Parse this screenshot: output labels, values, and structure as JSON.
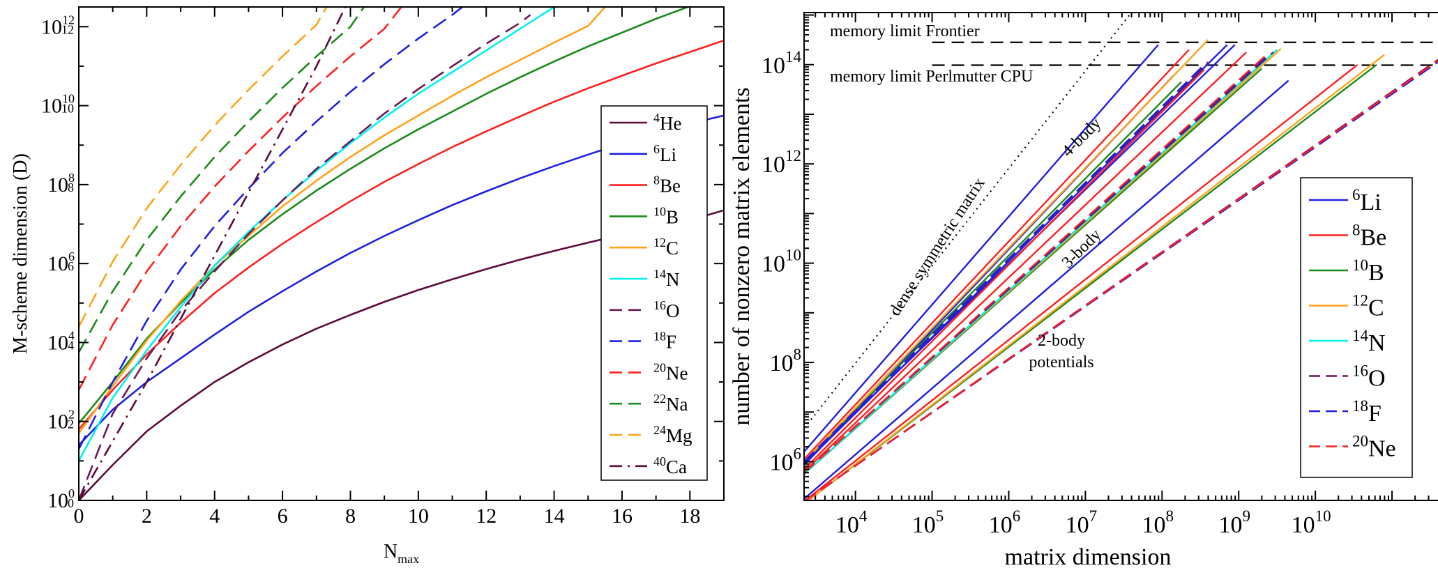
{
  "chart_data": [
    {
      "type": "line",
      "xlabel": "N",
      "xlabel_sub": "max",
      "ylabel": "M-scheme dimension (D)",
      "yscale": "log",
      "xlim": [
        0,
        19
      ],
      "ylim_log10": [
        0,
        12.5
      ],
      "x_ticks": [
        0,
        2,
        4,
        6,
        8,
        10,
        12,
        14,
        16,
        18
      ],
      "y_ticks_log10": [
        0,
        2,
        4,
        6,
        8,
        10,
        12
      ],
      "legend_position": "right",
      "series": [
        {
          "name_sup": "4",
          "name": "He",
          "color": "#5c0a3c",
          "dash": "solid",
          "x": [
            0,
            1,
            2,
            3,
            4,
            5,
            6,
            7,
            8,
            9,
            10,
            11,
            12,
            13,
            14,
            15,
            16,
            17,
            18,
            19
          ],
          "y_log10": [
            0,
            0.9,
            1.75,
            2.4,
            3.0,
            3.5,
            3.95,
            4.35,
            4.7,
            5.03,
            5.33,
            5.6,
            5.86,
            6.1,
            6.32,
            6.53,
            6.73,
            6.92,
            7.1,
            7.35
          ]
        },
        {
          "name_sup": "6",
          "name": "Li",
          "color": "#1f1fe0",
          "dash": "solid",
          "x": [
            0,
            1,
            2,
            3,
            4,
            5,
            6,
            7,
            8,
            9,
            10,
            11,
            12,
            13,
            14,
            15,
            16,
            17,
            18,
            19
          ],
          "y_log10": [
            1.4,
            2.3,
            3.0,
            3.6,
            4.2,
            4.78,
            5.3,
            5.8,
            6.27,
            6.7,
            7.1,
            7.48,
            7.83,
            8.16,
            8.47,
            8.76,
            9.04,
            9.31,
            9.55,
            9.75
          ]
        },
        {
          "name_sup": "8",
          "name": "Be",
          "color": "#ff1f1f",
          "dash": "solid",
          "x": [
            0,
            1,
            2,
            3,
            4,
            5,
            6,
            7,
            8,
            9,
            10,
            11,
            12,
            13,
            14,
            15,
            16,
            17,
            18,
            19
          ],
          "y_log10": [
            1.8,
            2.8,
            3.7,
            4.5,
            5.25,
            5.9,
            6.5,
            7.05,
            7.58,
            8.07,
            8.52,
            8.95,
            9.35,
            9.73,
            10.1,
            10.44,
            10.76,
            11.07,
            11.36,
            11.65
          ]
        },
        {
          "name_sup": "10",
          "name": "B",
          "color": "#1a8a1a",
          "dash": "solid",
          "x": [
            0,
            1,
            2,
            3,
            4,
            5,
            6,
            7,
            8,
            9,
            10,
            11,
            12,
            13,
            14,
            15,
            16,
            17,
            18
          ],
          "y_log10": [
            1.95,
            3.0,
            4.1,
            5.0,
            5.85,
            6.6,
            7.25,
            7.85,
            8.4,
            8.92,
            9.4,
            9.85,
            10.3,
            10.72,
            11.12,
            11.5,
            11.85,
            12.2,
            12.52
          ]
        },
        {
          "name_sup": "12",
          "name": "C",
          "color": "#ffa31a",
          "dash": "solid",
          "x": [
            0,
            1,
            2,
            3,
            4,
            5,
            6,
            7,
            8,
            9,
            10,
            11,
            12,
            13,
            14,
            15,
            15.5
          ],
          "y_log10": [
            1.7,
            2.9,
            4.05,
            5.05,
            5.95,
            6.7,
            7.45,
            8.1,
            8.7,
            9.25,
            9.75,
            10.25,
            10.72,
            11.16,
            11.6,
            12.02,
            12.5
          ]
        },
        {
          "name_sup": "14",
          "name": "N",
          "color": "#00f0f0",
          "dash": "solid",
          "x": [
            0,
            1,
            2,
            3,
            4,
            5,
            6,
            7,
            8,
            9,
            10,
            11,
            12,
            13,
            14
          ],
          "y_log10": [
            1.0,
            2.6,
            3.8,
            4.9,
            5.95,
            6.8,
            7.6,
            8.35,
            9.05,
            9.7,
            10.3,
            10.85,
            11.4,
            11.95,
            12.5
          ]
        },
        {
          "name_sup": "16",
          "name": "O",
          "color": "#6a1a58",
          "dash": "dashed",
          "x": [
            0,
            1,
            2,
            3,
            4,
            5,
            6,
            7,
            8,
            9,
            10,
            11,
            12,
            13,
            13.3
          ],
          "y_log10": [
            0,
            2.2,
            3.6,
            4.8,
            5.8,
            6.75,
            7.6,
            8.4,
            9.1,
            9.8,
            10.42,
            11.0,
            11.57,
            12.1,
            12.3
          ]
        },
        {
          "name_sup": "18",
          "name": "F",
          "color": "#1f1fe0",
          "dash": "dashed",
          "x": [
            0,
            1,
            2,
            3,
            4,
            5,
            6,
            7,
            8,
            9,
            10,
            11,
            11.3
          ],
          "y_log10": [
            1.3,
            3.0,
            4.55,
            5.85,
            6.95,
            7.9,
            8.8,
            9.6,
            10.35,
            11.05,
            11.7,
            12.3,
            12.5
          ]
        },
        {
          "name_sup": "20",
          "name": "Ne",
          "color": "#ff1f1f",
          "dash": "dashed",
          "x": [
            0,
            1,
            2,
            3,
            4,
            5,
            6,
            7,
            8,
            9,
            9.5
          ],
          "y_log10": [
            2.8,
            4.45,
            5.8,
            6.95,
            7.95,
            8.85,
            9.7,
            10.5,
            11.25,
            11.95,
            12.5
          ]
        },
        {
          "name_sup": "22",
          "name": "Na",
          "color": "#1a8a1a",
          "dash": "dashed",
          "x": [
            0,
            1,
            2,
            3,
            4,
            5,
            6,
            7,
            8,
            8.4
          ],
          "y_log10": [
            3.75,
            5.3,
            6.6,
            7.7,
            8.7,
            9.6,
            10.45,
            11.25,
            12.0,
            12.5
          ]
        },
        {
          "name_sup": "24",
          "name": "Mg",
          "color": "#ffa31a",
          "dash": "dashed",
          "x": [
            0,
            1,
            2,
            3,
            4,
            5,
            6,
            7,
            7.3
          ],
          "y_log10": [
            4.4,
            6.05,
            7.4,
            8.5,
            9.5,
            10.4,
            11.25,
            12.05,
            12.5
          ]
        },
        {
          "name_sup": "40",
          "name": "Ca",
          "color": "#5c0a3c",
          "dash": "dashdot",
          "x": [
            0,
            1,
            2,
            3,
            4,
            5,
            6,
            7,
            7.85
          ],
          "y_log10": [
            0,
            1.5,
            3.0,
            4.6,
            6.2,
            7.8,
            9.4,
            11.0,
            12.5
          ]
        }
      ]
    },
    {
      "type": "line",
      "xlabel": "matrix dimension",
      "ylabel": "number of nonzero matrix elements",
      "xscale": "log",
      "yscale": "log",
      "xlim_log10": [
        3.33,
        11.6
      ],
      "ylim_log10": [
        5.22,
        15.05
      ],
      "x_ticks_log10": [
        4,
        5,
        6,
        7,
        8,
        9,
        10
      ],
      "y_ticks_log10": [
        6,
        8,
        10,
        12,
        14
      ],
      "legend_position": "right",
      "annotations": {
        "memory_frontier": "memory limit Frontier",
        "memory_perlmutter": "memory limit Perlmutter CPU",
        "dense": "dense symmetric matrix",
        "four_body": "4-body",
        "three_body": "3-body",
        "two_body_line1": "2-body",
        "two_body_line2": "potentials"
      },
      "memory_limits_log10": {
        "frontier": 14.45,
        "perlmutter": 13.99
      },
      "dense_line_log10": {
        "x": [
          3.33,
          7.6
        ],
        "y": [
          6.67,
          15.05
        ]
      },
      "series": [
        {
          "name_sup": "6",
          "name": "Li",
          "color": "#1f1fe0",
          "dash": "solid",
          "segments": [
            {
              "x": [
                3.33,
                9.65
              ],
              "y": [
                5.25,
                13.68
              ]
            },
            {
              "x": [
                3.33,
                8.15
              ],
              "y": [
                5.93,
                13.78
              ]
            },
            {
              "x": [
                3.33,
                7.95
              ],
              "y": [
                6.2,
                14.4
              ]
            },
            {
              "x": [
                3.33,
                8.95
              ],
              "y": [
                5.99,
                14.4
              ]
            },
            {
              "x": [
                3.33,
                8.85
              ],
              "y": [
                5.95,
                14.4
              ]
            }
          ]
        },
        {
          "name_sup": "8",
          "name": "Be",
          "color": "#ff1f1f",
          "dash": "solid",
          "segments": [
            {
              "x": [
                3.33,
                10.55
              ],
              "y": [
                5.2,
                14.0
              ]
            },
            {
              "x": [
                3.33,
                9.1
              ],
              "y": [
                5.8,
                14.25
              ]
            },
            {
              "x": [
                3.33,
                8.35
              ],
              "y": [
                6.05,
                14.3
              ]
            },
            {
              "x": [
                3.33,
                8.55
              ],
              "y": [
                5.85,
                13.9
              ]
            }
          ]
        },
        {
          "name_sup": "10",
          "name": "B",
          "color": "#1a8a1a",
          "dash": "solid",
          "segments": [
            {
              "x": [
                3.33,
                10.8
              ],
              "y": [
                5.15,
                14.0
              ]
            },
            {
              "x": [
                3.33,
                9.3
              ],
              "y": [
                5.75,
                13.92
              ]
            },
            {
              "x": [
                3.33,
                8.25
              ],
              "y": [
                6.0,
                13.65
              ]
            }
          ]
        },
        {
          "name_sup": "12",
          "name": "C",
          "color": "#ffa31a",
          "dash": "solid",
          "segments": [
            {
              "x": [
                3.33,
                10.9
              ],
              "y": [
                5.15,
                14.2
              ]
            },
            {
              "x": [
                3.33,
                9.55
              ],
              "y": [
                5.75,
                14.32
              ]
            },
            {
              "x": [
                3.33,
                8.6
              ],
              "y": [
                6.0,
                14.5
              ]
            }
          ]
        },
        {
          "name_sup": "14",
          "name": "N",
          "color": "#00f0f0",
          "dash": "solid",
          "segments": [
            {
              "x": [
                3.33,
                9.5
              ],
              "y": [
                5.75,
                14.3
              ]
            }
          ]
        },
        {
          "name_sup": "16",
          "name": "O",
          "color": "#6a1a58",
          "dash": "dashed",
          "segments": [
            {
              "x": [
                3.33,
                11.6
              ],
              "y": [
                5.2,
                14.1
              ]
            },
            {
              "x": [
                3.33,
                9.45
              ],
              "y": [
                5.78,
                14.25
              ]
            },
            {
              "x": [
                3.33,
                8.6
              ],
              "y": [
                6.0,
                14.05
              ]
            }
          ]
        },
        {
          "name_sup": "18",
          "name": "F",
          "color": "#1f1fe0",
          "dash": "dashed",
          "segments": [
            {
              "x": [
                3.33,
                11.6
              ],
              "y": [
                5.2,
                14.05
              ]
            },
            {
              "x": [
                3.33,
                9.4
              ],
              "y": [
                5.78,
                14.22
              ]
            },
            {
              "x": [
                3.33,
                8.55
              ],
              "y": [
                6.0,
                14.0
              ]
            }
          ]
        },
        {
          "name_sup": "20",
          "name": "Ne",
          "color": "#ff1f1f",
          "dash": "dashed",
          "segments": [
            {
              "x": [
                3.33,
                11.6
              ],
              "y": [
                5.2,
                14.08
              ]
            },
            {
              "x": [
                3.33,
                9.35
              ],
              "y": [
                5.78,
                14.18
              ]
            }
          ]
        }
      ]
    }
  ]
}
